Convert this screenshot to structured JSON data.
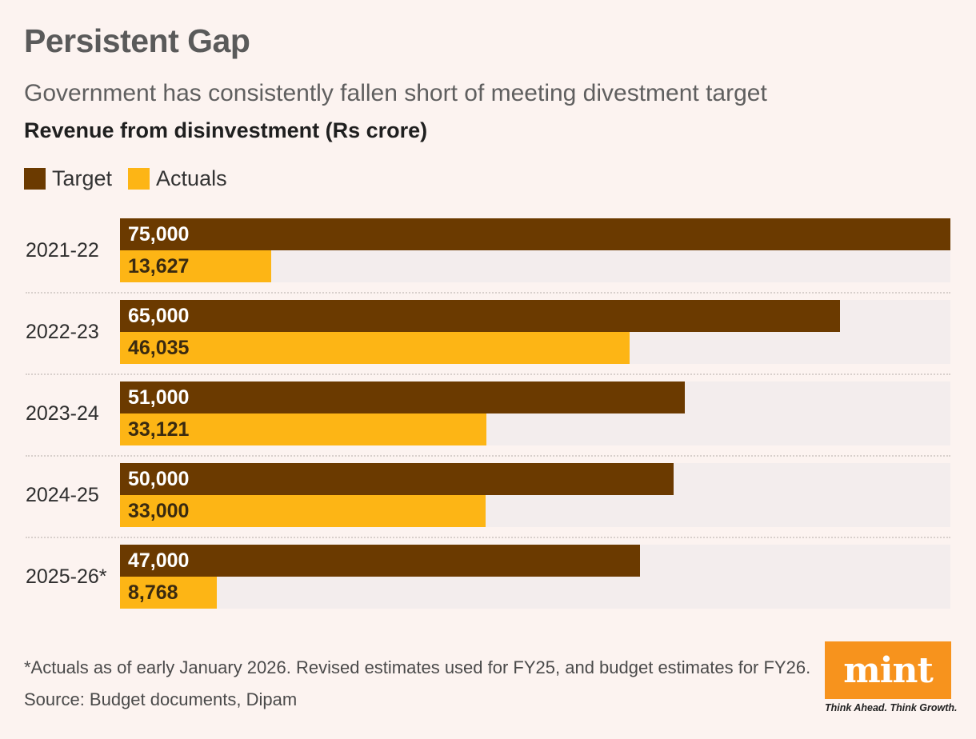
{
  "header": {
    "title": "Persistent Gap",
    "subtitle": "Government has consistently fallen short of meeting divestment target",
    "chart_label": "Revenue from disinvestment (Rs crore)"
  },
  "legend": {
    "target": "Target",
    "actuals": "Actuals"
  },
  "colors": {
    "target": "#6b3a00",
    "actuals": "#fdb515",
    "row_background": "#f3eded",
    "page_background": "#fcf3f0"
  },
  "chart_data": {
    "type": "bar",
    "orientation": "horizontal",
    "title": "Revenue from disinvestment (Rs crore)",
    "categories": [
      "2021-22",
      "2022-23",
      "2023-24",
      "2024-25",
      "2025-26*"
    ],
    "series": [
      {
        "name": "Target",
        "values": [
          75000,
          65000,
          51000,
          50000,
          47000
        ],
        "labels": [
          "75,000",
          "65,000",
          "51,000",
          "50,000",
          "47,000"
        ]
      },
      {
        "name": "Actuals",
        "values": [
          13627,
          46035,
          33121,
          33000,
          8768
        ],
        "labels": [
          "13,627",
          "46,035",
          "33,121",
          "33,000",
          "8,768"
        ]
      }
    ],
    "xlim": [
      0,
      75000
    ],
    "grid": false,
    "legend_position": "top-left"
  },
  "footer": {
    "footnote": "*Actuals as of early January 2026. Revised estimates used for FY25, and budget estimates for FY26.",
    "source": "Source: Budget documents, Dipam",
    "logo": "mint",
    "tagline": "Think Ahead. Think Growth."
  }
}
